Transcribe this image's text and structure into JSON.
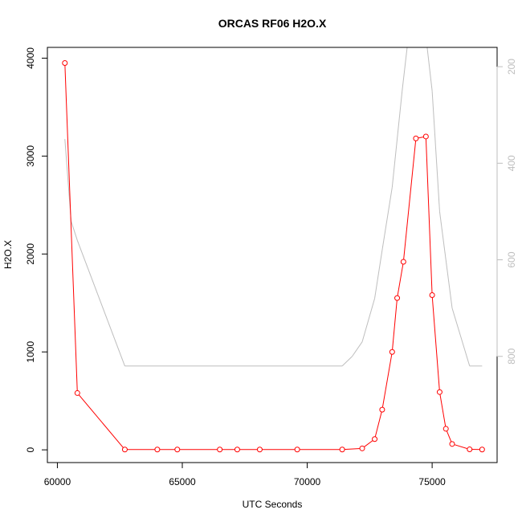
{
  "chart_data": {
    "type": "line",
    "title": "ORCAS RF06 H2O.X",
    "xlabel": "UTC Seconds",
    "ylabel": "H2O.X",
    "xlim": [
      59600,
      77600
    ],
    "ylim": [
      -130,
      4110
    ],
    "y2lim": [
      160,
      1020
    ],
    "y2_reversed": true,
    "grid": false,
    "x_ticks": [
      60000,
      65000,
      70000,
      75000
    ],
    "y_ticks": [
      0,
      1000,
      2000,
      3000,
      4000
    ],
    "y2_ticks": [
      200,
      400,
      600,
      800
    ],
    "series": [
      {
        "color": "#ff0000",
        "markers": "open-circle",
        "axis": "left",
        "x": [
          60300,
          60800,
          62700,
          64000,
          64800,
          66500,
          67200,
          68100,
          69600,
          71400,
          72200,
          72700,
          73000,
          73400,
          73600,
          73850,
          74350,
          74750,
          75000,
          75300,
          75550,
          75800,
          76500,
          77000
        ],
        "y": [
          3950,
          580,
          3,
          3,
          3,
          3,
          3,
          3,
          3,
          3,
          15,
          110,
          410,
          1000,
          1550,
          1920,
          3180,
          3200,
          1580,
          590,
          215,
          60,
          5,
          3
        ]
      },
      {
        "color": "#bebebe",
        "markers": "none",
        "axis": "right",
        "x": [
          60300,
          60550,
          60800,
          62700,
          71400,
          71800,
          72200,
          72700,
          73000,
          73400,
          73800,
          74000,
          74800,
          75000,
          75300,
          75550,
          75800,
          76500,
          77000
        ],
        "y": [
          350,
          520,
          560,
          820,
          820,
          800,
          770,
          680,
          580,
          450,
          250,
          160,
          160,
          250,
          500,
          600,
          700,
          820,
          820
        ]
      }
    ]
  }
}
